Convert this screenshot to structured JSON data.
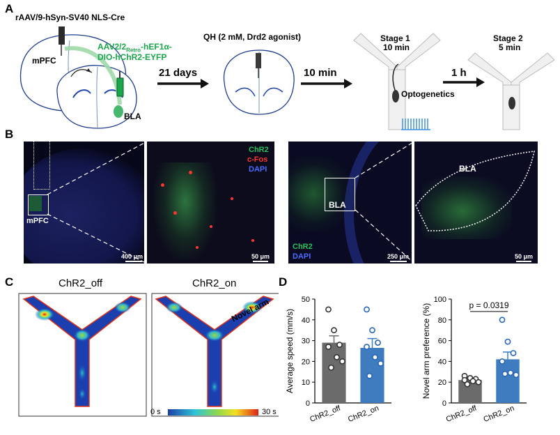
{
  "panel_labels": {
    "a": "A",
    "b": "B",
    "c": "C",
    "d": "D"
  },
  "panel_a": {
    "virus1": "rAAV/9-hSyn-SV40 NLS-Cre",
    "mpfc_label": "mPFC",
    "virus2_line1_pre": "AAV2/2",
    "virus2_line1_sub": "Retro",
    "virus2_line1_post": "-hEF1α-",
    "virus2_line2": "DIO-hChR2-EYFP",
    "bla_label": "BLA",
    "step1": "21 days",
    "drug": "QH (2 mM, Drd2 agonist)",
    "step2": "10 min",
    "stage1_title": "Stage 1",
    "stage1_time": "10 min",
    "optogenetics": "Optogenetics",
    "step3": "1 h",
    "stage2_title": "Stage 2",
    "stage2_time": "5 min"
  },
  "panel_b": {
    "mpfc_label": "mPFC",
    "scale1": "400 μm",
    "legend_chr2": "ChR2",
    "legend_cfos": "c-Fos",
    "legend_dapi": "DAPI",
    "scale2": "50 μm",
    "bla_box": "BLA",
    "legend_chr2_b": "ChR2",
    "legend_dapi_b": "DAPI",
    "scale3": "250 μm",
    "bla_zoom": "BLA",
    "scale4": "50 μm"
  },
  "panel_c": {
    "title_off": "ChR2_off",
    "title_on": "ChR2_on",
    "novel_arm": "Novel arm",
    "colorbar_min": "0 s",
    "colorbar_max": "30 s"
  },
  "colors": {
    "off_bar": "#6b6b6b",
    "on_bar": "#3e7bbf",
    "chr2_green": "#22c35a",
    "cfos_red": "#ff3333",
    "dapi_blue": "#4a6cff",
    "virus_green": "#1aa64a"
  },
  "chart_data": [
    {
      "type": "bar",
      "title": "",
      "ylabel": "Average speed (mm/s)",
      "xlabel": "",
      "categories": [
        "ChR2_off",
        "ChR2_on"
      ],
      "values": [
        29,
        26.5
      ],
      "errors": [
        3.3,
        4.5
      ],
      "ylim": [
        0,
        50
      ],
      "yticks": [
        0,
        10,
        20,
        30,
        40,
        50
      ],
      "points": [
        [
          45,
          35,
          28,
          27,
          22,
          20,
          17
        ],
        [
          45,
          35,
          29,
          27,
          22,
          19,
          13
        ]
      ],
      "annotation": ""
    },
    {
      "type": "bar",
      "title": "",
      "ylabel": "Novel arm preference (%)",
      "xlabel": "",
      "categories": [
        "ChR2_off",
        "ChR2_on"
      ],
      "values": [
        22,
        42
      ],
      "errors": [
        1.5,
        7
      ],
      "ylim": [
        0,
        100
      ],
      "yticks": [
        0,
        20,
        40,
        60,
        80,
        100
      ],
      "points": [
        [
          26,
          24,
          23,
          22,
          21,
          20,
          18
        ],
        [
          80,
          59,
          48,
          40,
          29,
          27,
          28
        ]
      ],
      "annotation": "p = 0.0319"
    }
  ]
}
